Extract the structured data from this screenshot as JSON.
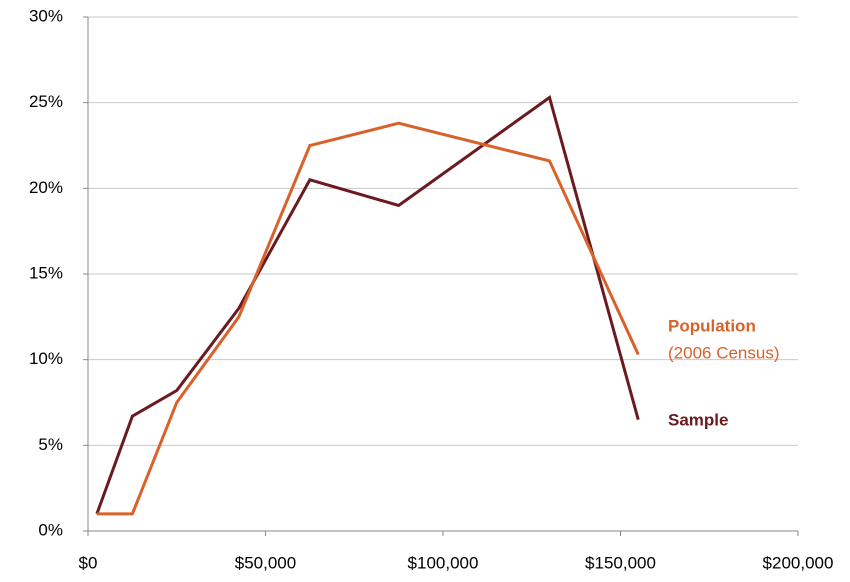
{
  "chart_data": {
    "type": "line",
    "x": [
      2500,
      12500,
      25000,
      42500,
      62500,
      87500,
      130000,
      155000
    ],
    "series": [
      {
        "name": "Sample",
        "color": "#6b1a1f",
        "values": [
          1.0,
          6.7,
          8.2,
          13.0,
          20.5,
          19.0,
          25.3,
          6.5
        ]
      },
      {
        "name": "Population",
        "color": "#d9622b",
        "values": [
          1.0,
          1.0,
          7.5,
          12.5,
          22.5,
          23.8,
          21.6,
          10.3
        ]
      }
    ],
    "annotations": [
      "(2006 Census)"
    ],
    "xlim": [
      0,
      200000
    ],
    "xticks": [
      {
        "value": 0,
        "label": "$0"
      },
      {
        "value": 50000,
        "label": "$50,000"
      },
      {
        "value": 100000,
        "label": "$100,000"
      },
      {
        "value": 150000,
        "label": "$150,000"
      },
      {
        "value": 200000,
        "label": "$200,000"
      }
    ],
    "ylim": [
      0,
      30
    ],
    "yticks": [
      {
        "value": 0,
        "label": "0%"
      },
      {
        "value": 5,
        "label": "5%"
      },
      {
        "value": 10,
        "label": "10%"
      },
      {
        "value": 15,
        "label": "15%"
      },
      {
        "value": 20,
        "label": "20%"
      },
      {
        "value": 25,
        "label": "25%"
      },
      {
        "value": 30,
        "label": "30%"
      }
    ],
    "grid": true
  }
}
